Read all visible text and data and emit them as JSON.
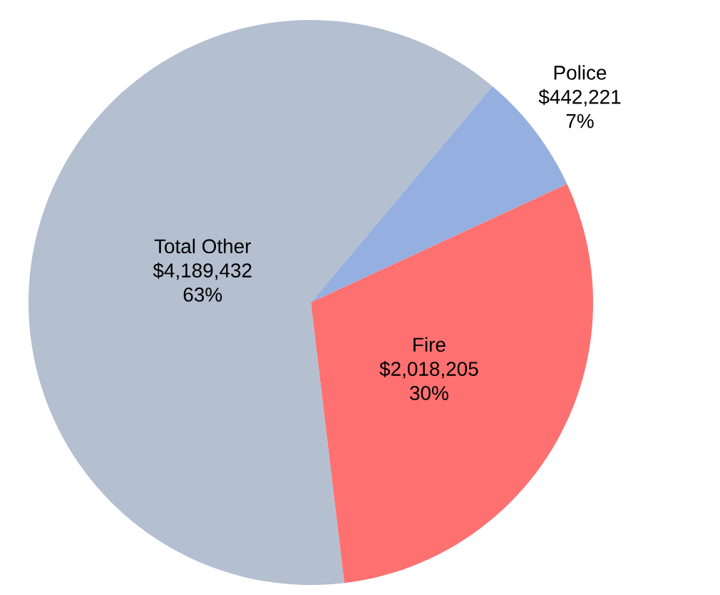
{
  "chart_data": {
    "type": "pie",
    "categories": [
      "Police",
      "Fire",
      "Total Other"
    ],
    "values": [
      7,
      30,
      63
    ],
    "colors": [
      "#95b0e0",
      "#ff7070",
      "#b4bfd0"
    ],
    "value_labels": [
      [
        "$442,221",
        "7%"
      ],
      [
        "$2,018,205",
        "30%"
      ],
      [
        "$4,189,432",
        "63%"
      ]
    ]
  }
}
